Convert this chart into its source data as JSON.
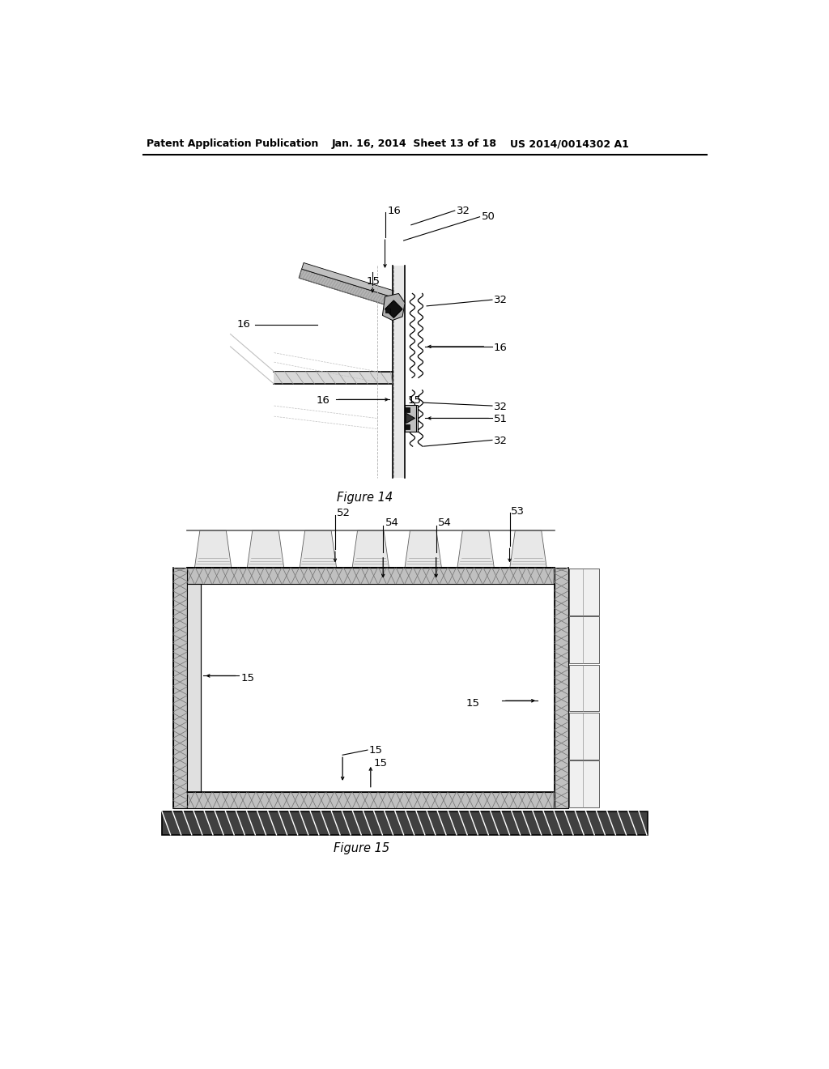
{
  "background_color": "#ffffff",
  "header_left": "Patent Application Publication",
  "header_mid": "Jan. 16, 2014  Sheet 13 of 18",
  "header_right": "US 2014/0014302 A1",
  "fig14_caption": "Figure 14",
  "fig15_caption": "Figure 15"
}
